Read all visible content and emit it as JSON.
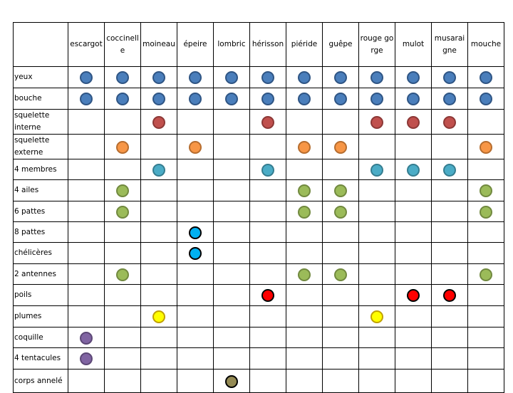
{
  "columns": [
    "escargot",
    "coccinelle",
    "moineau",
    "épeire",
    "lombric",
    "hérisson",
    "piéride",
    "guêpe",
    "rouge gorge",
    "mulot",
    "musaraigne",
    "mouche"
  ],
  "rows": [
    {
      "label": "yeux",
      "color": "#4a7ebb",
      "border": "#2f5584",
      "marks": [
        1,
        1,
        1,
        1,
        1,
        1,
        1,
        1,
        1,
        1,
        1,
        1
      ]
    },
    {
      "label": "bouche",
      "color": "#4a7ebb",
      "border": "#2f5584",
      "marks": [
        1,
        1,
        1,
        1,
        1,
        1,
        1,
        1,
        1,
        1,
        1,
        1
      ]
    },
    {
      "label": "squelette interne",
      "color": "#c0504d",
      "border": "#8c3836",
      "marks": [
        0,
        0,
        1,
        0,
        0,
        1,
        0,
        0,
        1,
        1,
        1,
        0
      ]
    },
    {
      "label": "squelette externe",
      "color": "#f79646",
      "border": "#b66d2f",
      "marks": [
        0,
        1,
        0,
        1,
        0,
        0,
        1,
        1,
        0,
        0,
        0,
        1
      ]
    },
    {
      "label": "4 membres",
      "color": "#4bacc6",
      "border": "#357d90",
      "marks": [
        0,
        0,
        1,
        0,
        0,
        1,
        0,
        0,
        1,
        1,
        1,
        0
      ]
    },
    {
      "label": "4 ailes",
      "color": "#9bbb59",
      "border": "#71893f",
      "marks": [
        0,
        1,
        0,
        0,
        0,
        0,
        1,
        1,
        0,
        0,
        0,
        1
      ]
    },
    {
      "label": "6 pattes",
      "color": "#9bbb59",
      "border": "#71893f",
      "marks": [
        0,
        1,
        0,
        0,
        0,
        0,
        1,
        1,
        0,
        0,
        0,
        1
      ]
    },
    {
      "label": "8 pattes",
      "color": "#00b0f0",
      "border": "#000000",
      "marks": [
        0,
        0,
        0,
        1,
        0,
        0,
        0,
        0,
        0,
        0,
        0,
        0
      ]
    },
    {
      "label": "chélicères",
      "color": "#00b0f0",
      "border": "#000000",
      "marks": [
        0,
        0,
        0,
        1,
        0,
        0,
        0,
        0,
        0,
        0,
        0,
        0
      ]
    },
    {
      "label": "2 antennes",
      "color": "#9bbb59",
      "border": "#71893f",
      "marks": [
        0,
        1,
        0,
        0,
        0,
        0,
        1,
        1,
        0,
        0,
        0,
        1
      ]
    },
    {
      "label": "poils",
      "color": "#ff0000",
      "border": "#000000",
      "marks": [
        0,
        0,
        0,
        0,
        0,
        1,
        0,
        0,
        0,
        1,
        1,
        0
      ]
    },
    {
      "label": "plumes",
      "color": "#ffff00",
      "border": "#c0a000",
      "marks": [
        0,
        0,
        1,
        0,
        0,
        0,
        0,
        0,
        1,
        0,
        0,
        0
      ]
    },
    {
      "label": "coquille",
      "color": "#8064a2",
      "border": "#5c4776",
      "marks": [
        1,
        0,
        0,
        0,
        0,
        0,
        0,
        0,
        0,
        0,
        0,
        0
      ]
    },
    {
      "label": "4 tentacules",
      "color": "#8064a2",
      "border": "#5c4776",
      "marks": [
        1,
        0,
        0,
        0,
        0,
        0,
        0,
        0,
        0,
        0,
        0,
        0
      ]
    },
    {
      "label": "corps annelé",
      "color": "#948a54",
      "border": "#000000",
      "marks": [
        0,
        0,
        0,
        0,
        1,
        0,
        0,
        0,
        0,
        0,
        0,
        0
      ]
    }
  ]
}
